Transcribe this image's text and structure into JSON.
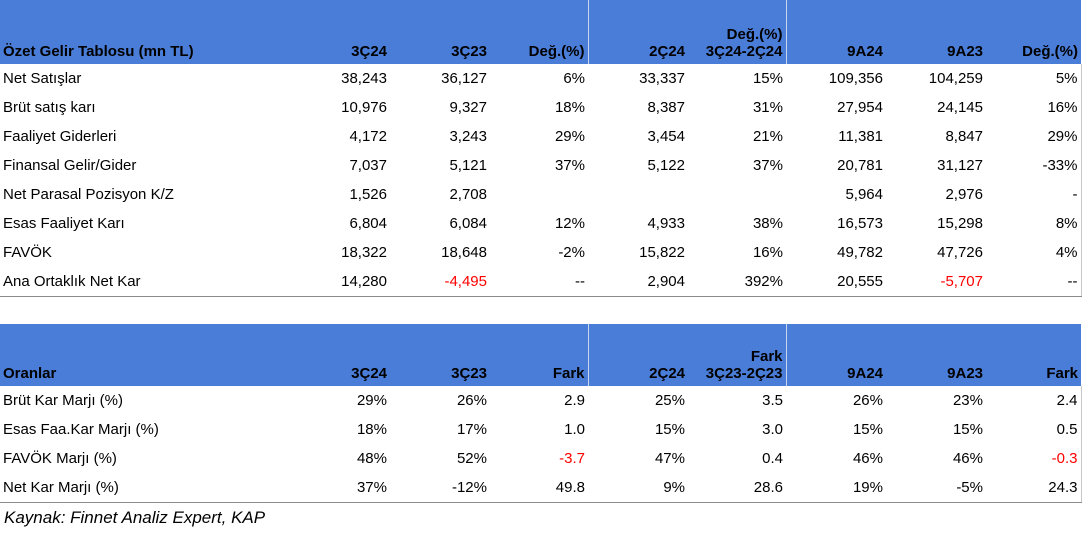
{
  "income": {
    "headers": [
      "Özet Gelir Tablosu (mn TL)",
      "3Ç24",
      "3Ç23",
      "Değ.(%)",
      "2Ç24",
      "Değ.(%)\n3Ç24-2Ç24",
      "9A24",
      "9A23",
      "Değ.(%)"
    ],
    "rows": [
      [
        "Net Satışlar",
        "38,243",
        "36,127",
        "6%",
        "33,337",
        "15%",
        "109,356",
        "104,259",
        "5%"
      ],
      [
        "Brüt satış karı",
        "10,976",
        "9,327",
        "18%",
        "8,387",
        "31%",
        "27,954",
        "24,145",
        "16%"
      ],
      [
        "Faaliyet Giderleri",
        "4,172",
        "3,243",
        "29%",
        "3,454",
        "21%",
        "11,381",
        "8,847",
        "29%"
      ],
      [
        "Finansal Gelir/Gider",
        "7,037",
        "5,121",
        "37%",
        "5,122",
        "37%",
        "20,781",
        "31,127",
        "-33%"
      ],
      [
        "Net Parasal Pozisyon K/Z",
        "1,526",
        "2,708",
        "",
        "",
        "",
        "5,964",
        "2,976",
        "-"
      ],
      [
        "Esas Faaliyet Karı",
        "6,804",
        "6,084",
        "12%",
        "4,933",
        "38%",
        "16,573",
        "15,298",
        "8%"
      ],
      [
        "FAVÖK",
        "18,322",
        "18,648",
        "-2%",
        "15,822",
        "16%",
        "49,782",
        "47,726",
        "4%"
      ],
      [
        "Ana Ortaklık Net Kar",
        "14,280",
        "-4,495",
        "--",
        "2,904",
        "392%",
        "20,555",
        "-5,707",
        "--"
      ]
    ]
  },
  "ratios": {
    "headers": [
      "Oranlar",
      "3Ç24",
      "3Ç23",
      "Fark",
      "2Ç24",
      "Fark\n3Ç23-2Ç23",
      "9A24",
      "9A23",
      "Fark"
    ],
    "rows": [
      [
        "Brüt Kar Marjı (%)",
        "29%",
        "26%",
        "2.9",
        "25%",
        "3.5",
        "26%",
        "23%",
        "2.4"
      ],
      [
        "Esas Faa.Kar Marjı (%)",
        "18%",
        "17%",
        "1.0",
        "15%",
        "3.0",
        "15%",
        "15%",
        "0.5"
      ],
      [
        "FAVÖK Marjı (%)",
        "48%",
        "52%",
        "-3.7",
        "47%",
        "0.4",
        "46%",
        "46%",
        "-0.3"
      ],
      [
        "Net Kar Marjı (%)",
        "37%",
        "-12%",
        "49.8",
        "9%",
        "28.6",
        "19%",
        "-5%",
        "24.3"
      ]
    ]
  },
  "source": "Kaynak: Finnet Analiz Expert, KAP",
  "colors": {
    "header_bg": "#4a7dd8",
    "negative": "#ff0000"
  }
}
